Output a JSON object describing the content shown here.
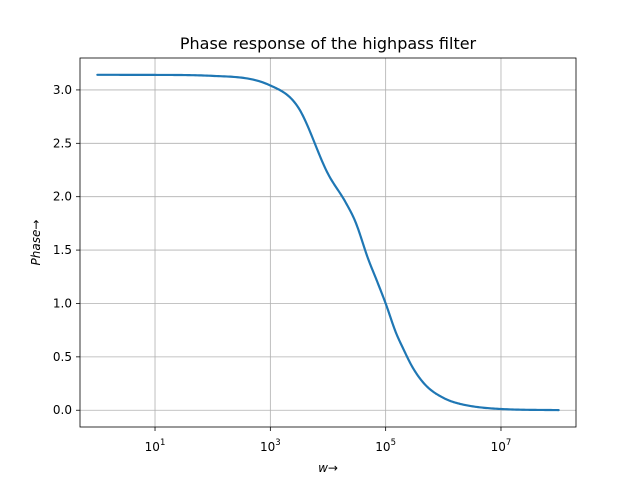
{
  "chart_data": {
    "type": "line",
    "title": "Phase response of the highpass filter",
    "xlabel": "w→",
    "ylabel": "Phase→",
    "x_scale": "log",
    "xlim": [
      0.5,
      200000000
    ],
    "ylim": [
      -0.157,
      3.299
    ],
    "grid": true,
    "x_ticks": [
      {
        "value": 10,
        "base": "10",
        "exp": "1"
      },
      {
        "value": 1000,
        "base": "10",
        "exp": "3"
      },
      {
        "value": 100000,
        "base": "10",
        "exp": "5"
      },
      {
        "value": 10000000,
        "base": "10",
        "exp": "7"
      }
    ],
    "y_ticks": [
      {
        "value": 0.0,
        "label": "0.0"
      },
      {
        "value": 0.5,
        "label": "0.5"
      },
      {
        "value": 1.0,
        "label": "1.0"
      },
      {
        "value": 1.5,
        "label": "1.5"
      },
      {
        "value": 2.0,
        "label": "2.0"
      },
      {
        "value": 2.5,
        "label": "2.5"
      },
      {
        "value": 3.0,
        "label": "3.0"
      }
    ],
    "series": [
      {
        "color": "#1f77b4",
        "x": [
          1,
          10,
          100,
          1000,
          3000,
          10000,
          20000,
          30000,
          50000,
          70000,
          100000,
          150000,
          200000,
          300000,
          500000,
          1000000,
          2000000,
          10000000,
          100000000
        ],
        "y": [
          3.1416,
          3.1406,
          3.1316,
          3.0416,
          2.8416,
          2.2143,
          1.9514,
          1.7627,
          1.4137,
          1.2162,
          1.0,
          0.7297,
          0.5805,
          0.3924,
          0.2314,
          0.1161,
          0.0581,
          0.0116,
          0.0012
        ]
      }
    ]
  }
}
